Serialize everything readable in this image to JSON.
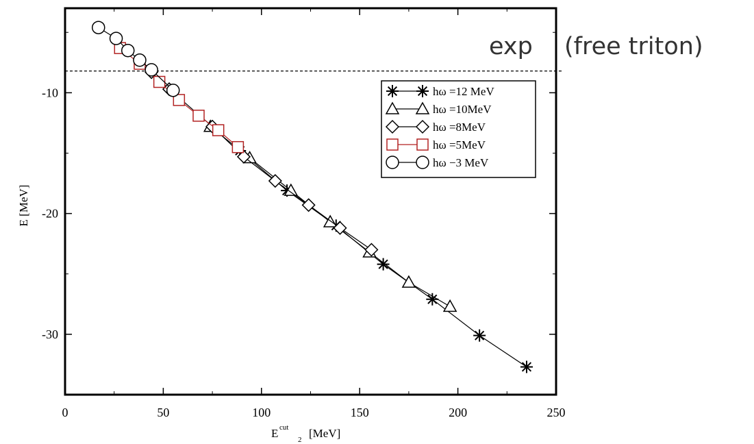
{
  "chart_data": {
    "type": "line",
    "xlabel": "E",
    "xlabel_sup": "cut",
    "xlabel_sub": "2",
    "xlabel_unit": "[MeV]",
    "ylabel": "E [MeV]",
    "xlim": [
      0,
      250
    ],
    "ylim": [
      -35,
      -3
    ],
    "xticks": [
      0,
      50,
      100,
      150,
      200,
      250
    ],
    "yticks": [
      -10,
      -20,
      -30
    ],
    "grid": false,
    "legend_position": "top-right",
    "reference_line": {
      "y": -8.2,
      "label_a": "exp",
      "label_b": "(free triton)",
      "style": "dashed"
    },
    "series": [
      {
        "name": "hω =12 MeV",
        "marker": "star",
        "color": "#000000",
        "points": [
          [
            89,
            -14.8
          ],
          [
            113,
            -18.1
          ],
          [
            138,
            -21.0
          ],
          [
            162,
            -24.2
          ],
          [
            187,
            -27.1
          ],
          [
            211,
            -30.1
          ],
          [
            235,
            -32.7
          ]
        ]
      },
      {
        "name": "hω =10MeV",
        "marker": "triangle",
        "color": "#000000",
        "points": [
          [
            74,
            -12.8
          ],
          [
            94,
            -15.4
          ],
          [
            115,
            -18.1
          ],
          [
            135,
            -20.7
          ],
          [
            155,
            -23.2
          ],
          [
            175,
            -25.7
          ],
          [
            196,
            -27.7
          ]
        ]
      },
      {
        "name": "hω =8MeV",
        "marker": "diamond",
        "color": "#000000",
        "points": [
          [
            44,
            -8.3
          ],
          [
            53,
            -9.7
          ],
          [
            75,
            -12.8
          ],
          [
            91,
            -15.3
          ],
          [
            107,
            -17.3
          ],
          [
            124,
            -19.3
          ],
          [
            140,
            -21.2
          ],
          [
            156,
            -23.0
          ]
        ]
      },
      {
        "name": "hω =5MeV",
        "marker": "square",
        "color": "#b22222",
        "points": [
          [
            28,
            -6.3
          ],
          [
            38,
            -7.6
          ],
          [
            48,
            -9.1
          ],
          [
            58,
            -10.6
          ],
          [
            68,
            -11.9
          ],
          [
            78,
            -13.1
          ],
          [
            88,
            -14.5
          ]
        ]
      },
      {
        "name": "hω −3 MeV",
        "marker": "circle",
        "color": "#000000",
        "points": [
          [
            17,
            -4.6
          ],
          [
            26,
            -5.5
          ],
          [
            32,
            -6.5
          ],
          [
            38,
            -7.3
          ],
          [
            44,
            -8.1
          ],
          [
            55,
            -9.8
          ]
        ]
      }
    ]
  }
}
